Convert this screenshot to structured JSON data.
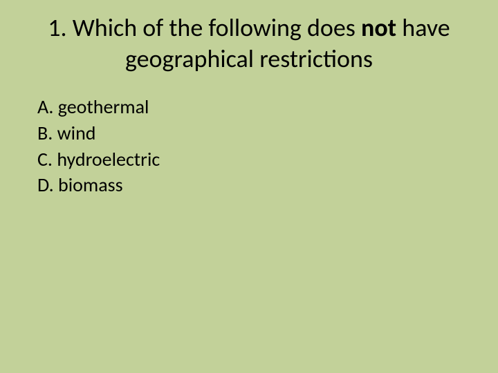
{
  "background_color": "#c2d199",
  "text_color": "#000000",
  "title": {
    "prefix": "1. Which of the following does ",
    "bold_word": "not",
    "suffix": " have geographical restrictions",
    "fontsize": 36
  },
  "options": [
    {
      "label": "A.",
      "text": "geothermal"
    },
    {
      "label": "B.",
      "text": "wind"
    },
    {
      "label": "C.",
      "text": "hydroelectric"
    },
    {
      "label": "D.",
      "text": "biomass"
    }
  ],
  "option_fontsize": 28
}
